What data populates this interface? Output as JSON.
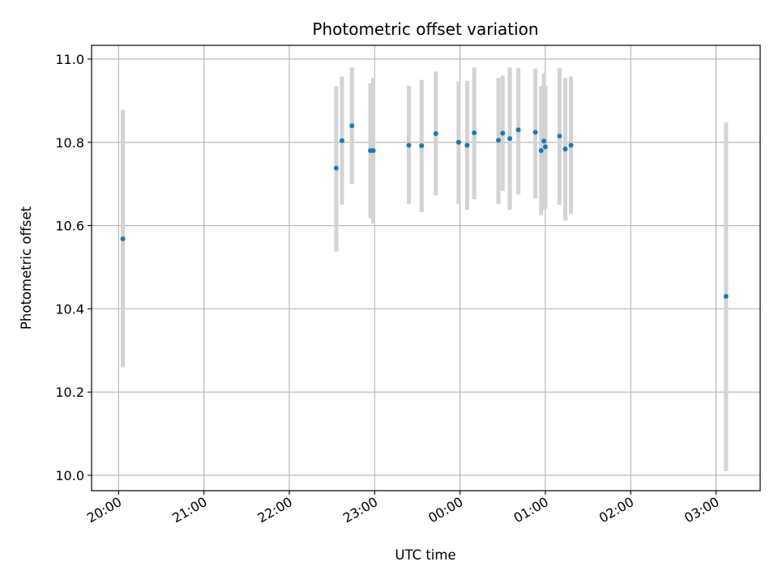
{
  "chart_data": {
    "type": "scatter",
    "title": "Photometric offset variation",
    "xlabel": "UTC time",
    "ylabel": "Photometric offset",
    "x_unit": "UTC clock time (hours past 20:00, continuing past midnight)",
    "xlim": [
      "19:41",
      "03:31"
    ],
    "ylim": [
      9.963,
      11.033
    ],
    "grid": true,
    "x_ticks": [
      "20:00",
      "21:00",
      "22:00",
      "23:00",
      "00:00",
      "01:00",
      "02:00",
      "03:00"
    ],
    "y_ticks": [
      "10.0",
      "10.2",
      "10.4",
      "10.6",
      "10.8",
      "11.0"
    ],
    "point_color": "#1f77b4",
    "errorbar_color": "#d3d3d3",
    "points": [
      {
        "t": "20:03",
        "y": 10.568,
        "lo": 10.26,
        "hi": 10.878
      },
      {
        "t": "22:33",
        "y": 10.738,
        "lo": 10.538,
        "hi": 10.935
      },
      {
        "t": "22:37",
        "y": 10.804,
        "lo": 10.65,
        "hi": 10.958
      },
      {
        "t": "22:44",
        "y": 10.84,
        "lo": 10.7,
        "hi": 10.98
      },
      {
        "t": "22:57",
        "y": 10.78,
        "lo": 10.618,
        "hi": 10.942
      },
      {
        "t": "22:59",
        "y": 10.78,
        "lo": 10.605,
        "hi": 10.955
      },
      {
        "t": "23:24",
        "y": 10.793,
        "lo": 10.652,
        "hi": 10.936
      },
      {
        "t": "23:33",
        "y": 10.792,
        "lo": 10.632,
        "hi": 10.95
      },
      {
        "t": "23:43",
        "y": 10.821,
        "lo": 10.672,
        "hi": 10.97
      },
      {
        "t": "23:59",
        "y": 10.8,
        "lo": 10.652,
        "hi": 10.947
      },
      {
        "t": "00:05",
        "y": 10.793,
        "lo": 10.638,
        "hi": 10.948
      },
      {
        "t": "00:10",
        "y": 10.823,
        "lo": 10.663,
        "hi": 10.98
      },
      {
        "t": "00:27",
        "y": 10.805,
        "lo": 10.652,
        "hi": 10.955
      },
      {
        "t": "00:30",
        "y": 10.822,
        "lo": 10.683,
        "hi": 10.96
      },
      {
        "t": "00:35",
        "y": 10.809,
        "lo": 10.638,
        "hi": 10.98
      },
      {
        "t": "00:41",
        "y": 10.83,
        "lo": 10.675,
        "hi": 10.978
      },
      {
        "t": "00:53",
        "y": 10.824,
        "lo": 10.665,
        "hi": 10.977
      },
      {
        "t": "00:57",
        "y": 10.78,
        "lo": 10.625,
        "hi": 10.935
      },
      {
        "t": "00:59",
        "y": 10.803,
        "lo": 10.637,
        "hi": 10.966
      },
      {
        "t": "01:00",
        "y": 10.789,
        "lo": 10.64,
        "hi": 10.935
      },
      {
        "t": "01:10",
        "y": 10.815,
        "lo": 10.65,
        "hi": 10.978
      },
      {
        "t": "01:14",
        "y": 10.784,
        "lo": 10.612,
        "hi": 10.955
      },
      {
        "t": "01:18",
        "y": 10.793,
        "lo": 10.628,
        "hi": 10.958
      },
      {
        "t": "03:07",
        "y": 10.43,
        "lo": 10.01,
        "hi": 10.848
      }
    ]
  }
}
